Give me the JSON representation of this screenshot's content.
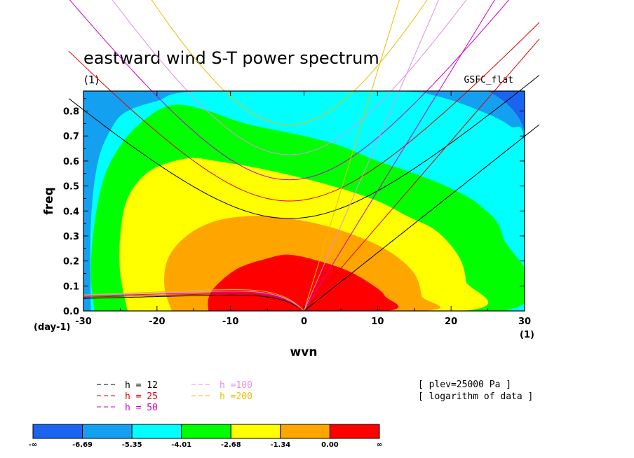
{
  "chart_data": {
    "type": "heatmap",
    "title": "eastward wind S-T power spectrum",
    "subtitle_left": "(1)",
    "subtitle_right": "GSFC_flat",
    "xlabel": "wvn",
    "ylabel": "freq",
    "x_unit": "(1)",
    "y_unit": "(day-1)",
    "xlim": [
      -30,
      30
    ],
    "ylim": [
      0,
      0.88
    ],
    "x_ticks": [
      -30,
      -20,
      -10,
      0,
      10,
      20,
      30
    ],
    "y_ticks": [
      0.0,
      0.1,
      0.2,
      0.3,
      0.4,
      0.5,
      0.6,
      0.7,
      0.8
    ],
    "y_tick_labels": [
      "0.0",
      "0.1",
      "0.2",
      "0.3",
      "0.4",
      "0.5",
      "0.6",
      "0.7",
      "0.8"
    ],
    "x_tick_labels": [
      "-30",
      "-20",
      "-10",
      "0",
      "10",
      "20",
      "30"
    ],
    "contour_levels": [
      -6.69,
      -5.35,
      -4.01,
      -2.68,
      -1.34,
      0.0
    ],
    "colorbar": {
      "labels": [
        "-∞",
        "-6.69",
        "-5.35",
        "-4.01",
        "-2.68",
        "-1.34",
        "0.00",
        "∞"
      ],
      "colors": [
        "#1a64f0",
        "#14a0f0",
        "#00ffff",
        "#00ff00",
        "#ffff00",
        "#ffa500",
        "#ff0000"
      ]
    },
    "regions": [
      {
        "level": "-5.35 to -4.01",
        "color": "#00ffff",
        "outline": [
          [
            -29,
            0
          ],
          [
            -29,
            0.35
          ],
          [
            -28,
            0.6
          ],
          [
            -26,
            0.74
          ],
          [
            -24,
            0.8
          ],
          [
            -20,
            0.84
          ],
          [
            -14,
            0.88
          ],
          [
            12,
            0.88
          ],
          [
            18,
            0.86
          ],
          [
            24,
            0.8
          ],
          [
            28,
            0.74
          ],
          [
            30,
            0.66
          ],
          [
            30,
            0
          ],
          [
            -29,
            0
          ]
        ]
      },
      {
        "level": "-4.01 to -2.68",
        "color": "#00ff00",
        "outline": [
          [
            -28.5,
            0
          ],
          [
            -29,
            0.15
          ],
          [
            -28.5,
            0.35
          ],
          [
            -27,
            0.55
          ],
          [
            -24,
            0.7
          ],
          [
            -20,
            0.8
          ],
          [
            -17,
            0.825
          ],
          [
            -13,
            0.8
          ],
          [
            -8,
            0.75
          ],
          [
            0,
            0.7
          ],
          [
            5,
            0.66
          ],
          [
            10,
            0.6
          ],
          [
            15,
            0.55
          ],
          [
            20,
            0.49
          ],
          [
            24,
            0.42
          ],
          [
            27,
            0.3
          ],
          [
            27,
            0.0
          ],
          [
            -28.5,
            0
          ]
        ]
      },
      {
        "level": "-2.68 to -1.34",
        "color": "#ffff00",
        "outline": [
          [
            -24,
            0
          ],
          [
            -25,
            0.15
          ],
          [
            -25,
            0.3
          ],
          [
            -24,
            0.45
          ],
          [
            -21,
            0.56
          ],
          [
            -16,
            0.61
          ],
          [
            -12,
            0.6
          ],
          [
            -6,
            0.57
          ],
          [
            0,
            0.53
          ],
          [
            5,
            0.49
          ],
          [
            10,
            0.44
          ],
          [
            14,
            0.38
          ],
          [
            18,
            0.32
          ],
          [
            21,
            0.22
          ],
          [
            22,
            0.12
          ],
          [
            21.5,
            0
          ],
          [
            -24,
            0
          ]
        ]
      },
      {
        "level": "-1.34 to 0.00",
        "color": "#ffa500",
        "outline": [
          [
            -18,
            0
          ],
          [
            -19,
            0.1
          ],
          [
            -18.5,
            0.21
          ],
          [
            -16,
            0.3
          ],
          [
            -12,
            0.36
          ],
          [
            -7,
            0.38
          ],
          [
            -2,
            0.37
          ],
          [
            3,
            0.34
          ],
          [
            8,
            0.29
          ],
          [
            12,
            0.23
          ],
          [
            15,
            0.15
          ],
          [
            16,
            0.06
          ],
          [
            16,
            0
          ],
          [
            -18,
            0
          ]
        ]
      },
      {
        "level": "0.00 to ∞",
        "color": "#ff0000",
        "outline": [
          [
            -13,
            0
          ],
          [
            -13,
            0.05
          ],
          [
            -12,
            0.1
          ],
          [
            -9,
            0.17
          ],
          [
            -5,
            0.21
          ],
          [
            -2,
            0.225
          ],
          [
            2,
            0.2
          ],
          [
            6,
            0.16
          ],
          [
            9,
            0.11
          ],
          [
            11,
            0.06
          ],
          [
            11,
            0
          ],
          [
            -13,
            0
          ]
        ]
      }
    ],
    "dispersion_curves": [
      {
        "name": "h = 12",
        "color": "#000000",
        "intercept": 0.37,
        "curvature": 0.00044,
        "kelvin_slope": 0.0233,
        "ig_low": [
          0.06,
          0.05
        ]
      },
      {
        "name": "h = 25",
        "color": "#e00000",
        "intercept": 0.44,
        "curvature": 0.00056,
        "kelvin_slope": 0.034,
        "ig_low": [
          0.065,
          0.055
        ]
      },
      {
        "name": "h = 50",
        "color": "#cc00cc",
        "intercept": 0.525,
        "curvature": 0.00068,
        "kelvin_slope": 0.048,
        "ig_low": [
          0.07,
          0.06
        ]
      },
      {
        "name": "h =100",
        "color": "#e090e0",
        "intercept": 0.625,
        "curvature": 0.0008,
        "kelvin_slope": 0.068,
        "ig_low": [
          0.075,
          0.062
        ]
      },
      {
        "name": "h =200",
        "color": "#e6c000",
        "intercept": 0.745,
        "curvature": 0.00095,
        "kelvin_slope": 0.096,
        "ig_low": [
          0.08,
          0.064
        ]
      }
    ],
    "annotations": [
      "[ plev=25000 Pa ]",
      "[ logarithm of data ]"
    ]
  },
  "legend": {
    "col1": [
      {
        "label": "h = 12",
        "color": "#000000"
      },
      {
        "label": "h = 25",
        "color": "#e00000"
      },
      {
        "label": "h = 50",
        "color": "#cc00cc"
      }
    ],
    "col2": [
      {
        "label": "h =100",
        "color": "#e090e0"
      },
      {
        "label": "h =200",
        "color": "#e6c000"
      }
    ]
  }
}
